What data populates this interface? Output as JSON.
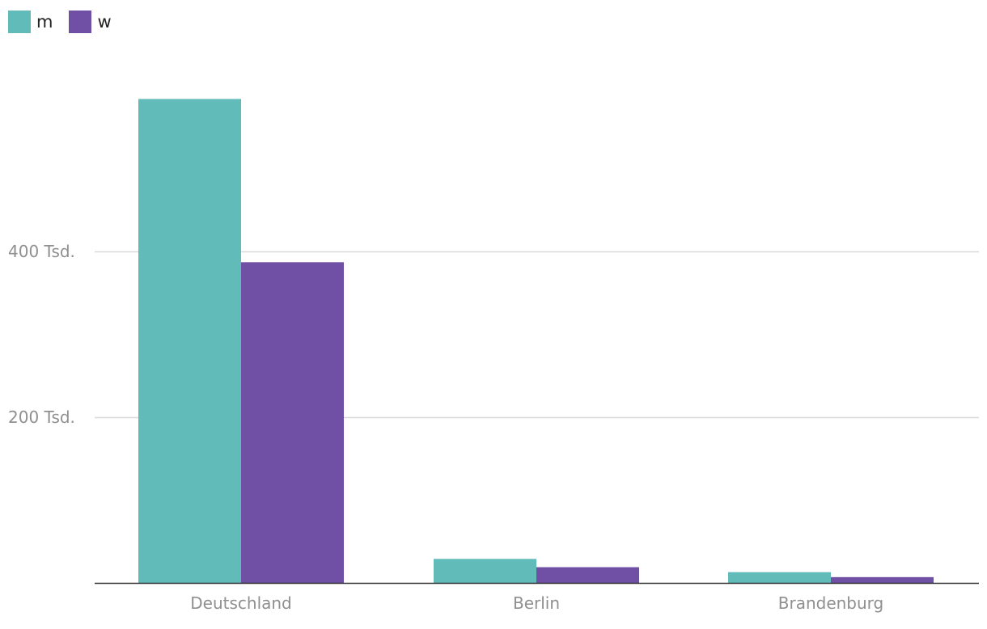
{
  "legend": {
    "items": [
      {
        "label": "m",
        "color": "#61bbb9"
      },
      {
        "label": "w",
        "color": "#7050a5"
      }
    ]
  },
  "chart_data": {
    "type": "bar",
    "categories": [
      "Deutschland",
      "Berlin",
      "Brandenburg"
    ],
    "series": [
      {
        "name": "m",
        "color": "#61bbb9",
        "values": [
          584,
          29,
          13
        ]
      },
      {
        "name": "w",
        "color": "#7050a5",
        "values": [
          387,
          19,
          7
        ]
      }
    ],
    "yticks": [
      {
        "value": 200,
        "label": "200 Tsd."
      },
      {
        "value": 400,
        "label": "400 Tsd."
      }
    ],
    "ylim": [
      0,
      600
    ],
    "grid": true,
    "legend_position": "top-left",
    "title": "",
    "xlabel": "",
    "ylabel": ""
  }
}
